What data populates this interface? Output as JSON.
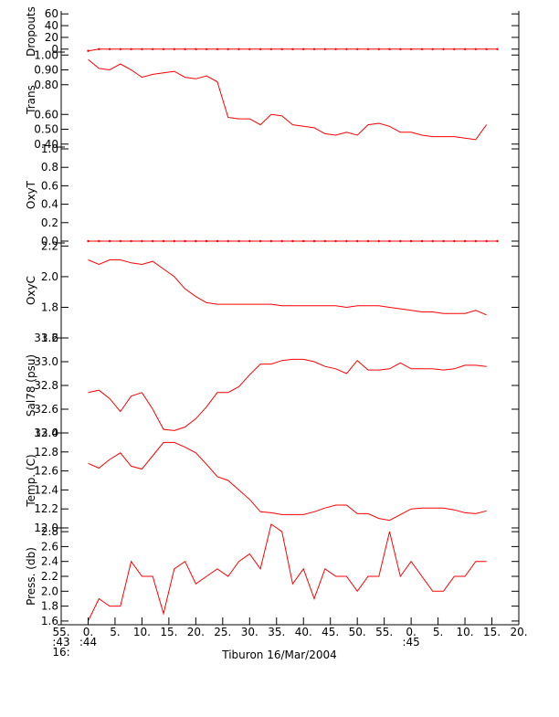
{
  "chart_data": {
    "type": "line",
    "xlabel": "Tiburon 16/Mar/2004",
    "series_color": "#ff0000",
    "x_ticks": [
      {
        "label": "55.",
        "sub1": ":43",
        "sub2": "16:"
      },
      {
        "label": "0.",
        "sub1": ":44",
        "sub2": ""
      },
      {
        "label": "5.",
        "sub1": "",
        "sub2": ""
      },
      {
        "label": "10.",
        "sub1": "",
        "sub2": ""
      },
      {
        "label": "15.",
        "sub1": "",
        "sub2": ""
      },
      {
        "label": "20.",
        "sub1": "",
        "sub2": ""
      },
      {
        "label": "25.",
        "sub1": "",
        "sub2": ""
      },
      {
        "label": "30.",
        "sub1": "",
        "sub2": ""
      },
      {
        "label": "35.",
        "sub1": "",
        "sub2": ""
      },
      {
        "label": "40.",
        "sub1": "",
        "sub2": ""
      },
      {
        "label": "45.",
        "sub1": "",
        "sub2": ""
      },
      {
        "label": "50.",
        "sub1": "",
        "sub2": ""
      },
      {
        "label": "55.",
        "sub1": "",
        "sub2": ""
      },
      {
        "label": "0.",
        "sub1": ":45",
        "sub2": ""
      },
      {
        "label": "5.",
        "sub1": "",
        "sub2": ""
      },
      {
        "label": "10.",
        "sub1": "",
        "sub2": ""
      },
      {
        "label": "15.",
        "sub1": "",
        "sub2": ""
      },
      {
        "label": "20.",
        "sub1": "",
        "sub2": ""
      }
    ],
    "x_seconds": [
      0,
      2,
      4,
      6,
      8,
      10,
      12,
      14,
      16,
      18,
      20,
      22,
      24,
      26,
      28,
      30,
      32,
      34,
      36,
      38,
      40,
      42,
      44,
      46,
      48,
      50,
      52,
      54,
      56,
      58,
      60,
      62,
      64,
      66,
      68,
      70,
      72,
      74,
      76
    ],
    "panels": [
      {
        "name": "Dropouts",
        "ylabel": "Dropouts",
        "ylim": [
          -5,
          65
        ],
        "ticks": [
          0,
          20,
          40,
          60
        ],
        "tick_labels": [
          "0",
          "20",
          "40",
          "60"
        ],
        "dotted": true,
        "x_seconds": [
          0,
          2,
          4,
          6,
          8,
          10,
          12,
          14,
          16,
          18,
          20,
          22,
          24,
          26,
          28,
          30,
          32,
          34,
          36,
          38,
          40,
          42,
          44,
          46,
          48,
          50,
          52,
          54,
          56,
          58,
          60,
          62,
          64,
          66,
          68,
          70,
          72,
          74,
          76
        ],
        "values": [
          -3,
          0,
          0,
          0,
          0,
          0,
          0,
          0,
          0,
          0,
          0,
          0,
          0,
          0,
          0,
          0,
          0,
          0,
          0,
          0,
          0,
          0,
          0,
          0,
          0,
          0,
          0,
          0,
          0,
          0,
          0,
          0,
          0,
          0,
          0,
          0,
          0,
          0,
          0
        ]
      },
      {
        "name": "Trans",
        "ylabel": "Trans",
        "ylim": [
          0.38,
          1.02
        ],
        "ticks": [
          0.4,
          0.5,
          0.6,
          0.8,
          0.9,
          1.0
        ],
        "tick_labels": [
          "0.40",
          "0.50",
          "0.60",
          "0.80",
          "0.90",
          "1.00"
        ],
        "dotted": false,
        "values": [
          0.97,
          0.91,
          0.9,
          0.94,
          0.9,
          0.85,
          0.87,
          0.88,
          0.89,
          0.85,
          0.84,
          0.86,
          0.82,
          0.58,
          0.57,
          0.57,
          0.53,
          0.6,
          0.59,
          0.53,
          0.52,
          0.51,
          0.47,
          0.46,
          0.48,
          0.46,
          0.53,
          0.54,
          0.52,
          0.48,
          0.48,
          0.46,
          0.45,
          0.45,
          0.45,
          0.44,
          0.43,
          0.53
        ]
      },
      {
        "name": "OxyT",
        "ylabel": "OxyT",
        "ylim": [
          -0.02,
          1.02
        ],
        "ticks": [
          0.0,
          0.2,
          0.4,
          0.6,
          0.8,
          1.0
        ],
        "tick_labels": [
          "0.0",
          "0.2",
          "0.4",
          "0.6",
          "0.8",
          "1.0"
        ],
        "dotted": true,
        "x_seconds": [
          0,
          2,
          4,
          6,
          8,
          10,
          12,
          14,
          16,
          18,
          20,
          22,
          24,
          26,
          28,
          30,
          32,
          34,
          36,
          38,
          40,
          42,
          44,
          46,
          48,
          50,
          52,
          54,
          56,
          58,
          60,
          62,
          64,
          66,
          68,
          70,
          72,
          74,
          76
        ],
        "values": [
          0,
          0,
          0,
          0,
          0,
          0,
          0,
          0,
          0,
          0,
          0,
          0,
          0,
          0,
          0,
          0,
          0,
          0,
          0,
          0,
          0,
          0,
          0,
          0,
          0,
          0,
          0,
          0,
          0,
          0,
          0,
          0,
          0,
          0,
          0,
          0,
          0,
          0,
          0
        ]
      },
      {
        "name": "OxyC",
        "ylabel": "OxyC",
        "ylim": [
          1.6,
          2.22
        ],
        "ticks": [
          1.6,
          1.8,
          2.0,
          2.2
        ],
        "tick_labels": [
          "1.6",
          "1.8",
          "2.0",
          "2.2"
        ],
        "dotted": false,
        "values": [
          2.11,
          2.08,
          2.11,
          2.11,
          2.09,
          2.08,
          2.1,
          2.05,
          2.0,
          1.92,
          1.87,
          1.83,
          1.82,
          1.82,
          1.82,
          1.82,
          1.82,
          1.82,
          1.81,
          1.81,
          1.81,
          1.81,
          1.81,
          1.81,
          1.8,
          1.81,
          1.81,
          1.81,
          1.8,
          1.79,
          1.78,
          1.77,
          1.77,
          1.76,
          1.76,
          1.76,
          1.78,
          1.75
        ]
      },
      {
        "name": "Sal78",
        "ylabel": "Sal78 (psu)",
        "ylim": [
          32.4,
          33.2
        ],
        "ticks": [
          32.4,
          32.6,
          32.8,
          33.0,
          33.2
        ],
        "tick_labels": [
          "32.4",
          "32.6",
          "32.8",
          "33.0",
          "33.2"
        ],
        "dotted": false,
        "values": [
          32.74,
          32.76,
          32.69,
          32.58,
          32.71,
          32.74,
          32.6,
          32.43,
          32.42,
          32.45,
          32.52,
          32.62,
          32.74,
          32.74,
          32.79,
          32.89,
          32.98,
          32.98,
          33.01,
          33.02,
          33.02,
          33.0,
          32.96,
          32.94,
          32.9,
          33.01,
          32.93,
          32.93,
          32.94,
          32.99,
          32.94,
          32.94,
          32.94,
          32.93,
          32.94,
          32.97,
          32.97,
          32.96
        ]
      },
      {
        "name": "Temp",
        "ylabel": "Temp. (C)",
        "ylim": [
          12.0,
          13.0
        ],
        "ticks": [
          12.0,
          12.2,
          12.4,
          12.6,
          12.8,
          13.0
        ],
        "tick_labels": [
          "12.0",
          "12.2",
          "12.4",
          "12.6",
          "12.8",
          "13.0"
        ],
        "dotted": false,
        "values": [
          12.68,
          12.63,
          12.72,
          12.79,
          12.65,
          12.62,
          12.76,
          12.9,
          12.9,
          12.85,
          12.79,
          12.67,
          12.54,
          12.5,
          12.4,
          12.3,
          12.17,
          12.16,
          12.14,
          12.14,
          12.14,
          12.17,
          12.21,
          12.24,
          12.24,
          12.15,
          12.15,
          12.1,
          12.08,
          12.14,
          12.2,
          12.21,
          12.21,
          12.21,
          12.19,
          12.16,
          12.15,
          12.18
        ]
      },
      {
        "name": "Press",
        "ylabel": "Press. (db)",
        "ylim": [
          1.55,
          2.85
        ],
        "ticks": [
          1.6,
          1.8,
          2.0,
          2.2,
          2.4,
          2.6,
          2.8
        ],
        "tick_labels": [
          "1.6",
          "1.8",
          "2.0",
          "2.2",
          "2.4",
          "2.6",
          "2.8"
        ],
        "dotted": false,
        "values": [
          1.6,
          1.9,
          1.8,
          1.8,
          2.4,
          2.2,
          2.2,
          1.7,
          2.3,
          2.4,
          2.1,
          2.2,
          2.3,
          2.2,
          2.4,
          2.5,
          2.3,
          2.9,
          2.8,
          2.1,
          2.3,
          1.9,
          2.3,
          2.2,
          2.2,
          2.0,
          2.2,
          2.2,
          2.8,
          2.2,
          2.4,
          2.2,
          2.0,
          2.0,
          2.2,
          2.2,
          2.4,
          2.4
        ]
      }
    ]
  }
}
